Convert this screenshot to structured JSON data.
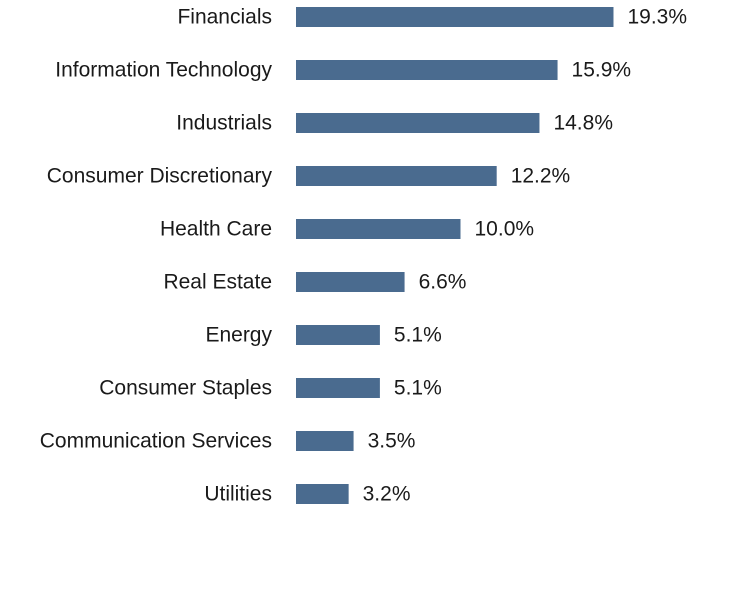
{
  "chart_data": {
    "type": "bar",
    "orientation": "horizontal",
    "categories": [
      "Financials",
      "Information Technology",
      "Industrials",
      "Consumer Discretionary",
      "Health Care",
      "Real Estate",
      "Energy",
      "Consumer Staples",
      "Communication Services",
      "Utilities"
    ],
    "values": [
      19.3,
      15.9,
      14.8,
      12.2,
      10.0,
      6.6,
      5.1,
      5.1,
      3.5,
      3.2
    ],
    "value_labels": [
      "19.3%",
      "15.9%",
      "14.8%",
      "12.2%",
      "10.0%",
      "6.6%",
      "5.1%",
      "5.1%",
      "3.5%",
      "3.2%"
    ],
    "unit": "%",
    "title": "",
    "xlabel": "",
    "ylabel": "",
    "xlim": [
      0,
      19.3
    ],
    "grid": false,
    "legend": "none",
    "bar_color": "#4a6b8f"
  }
}
